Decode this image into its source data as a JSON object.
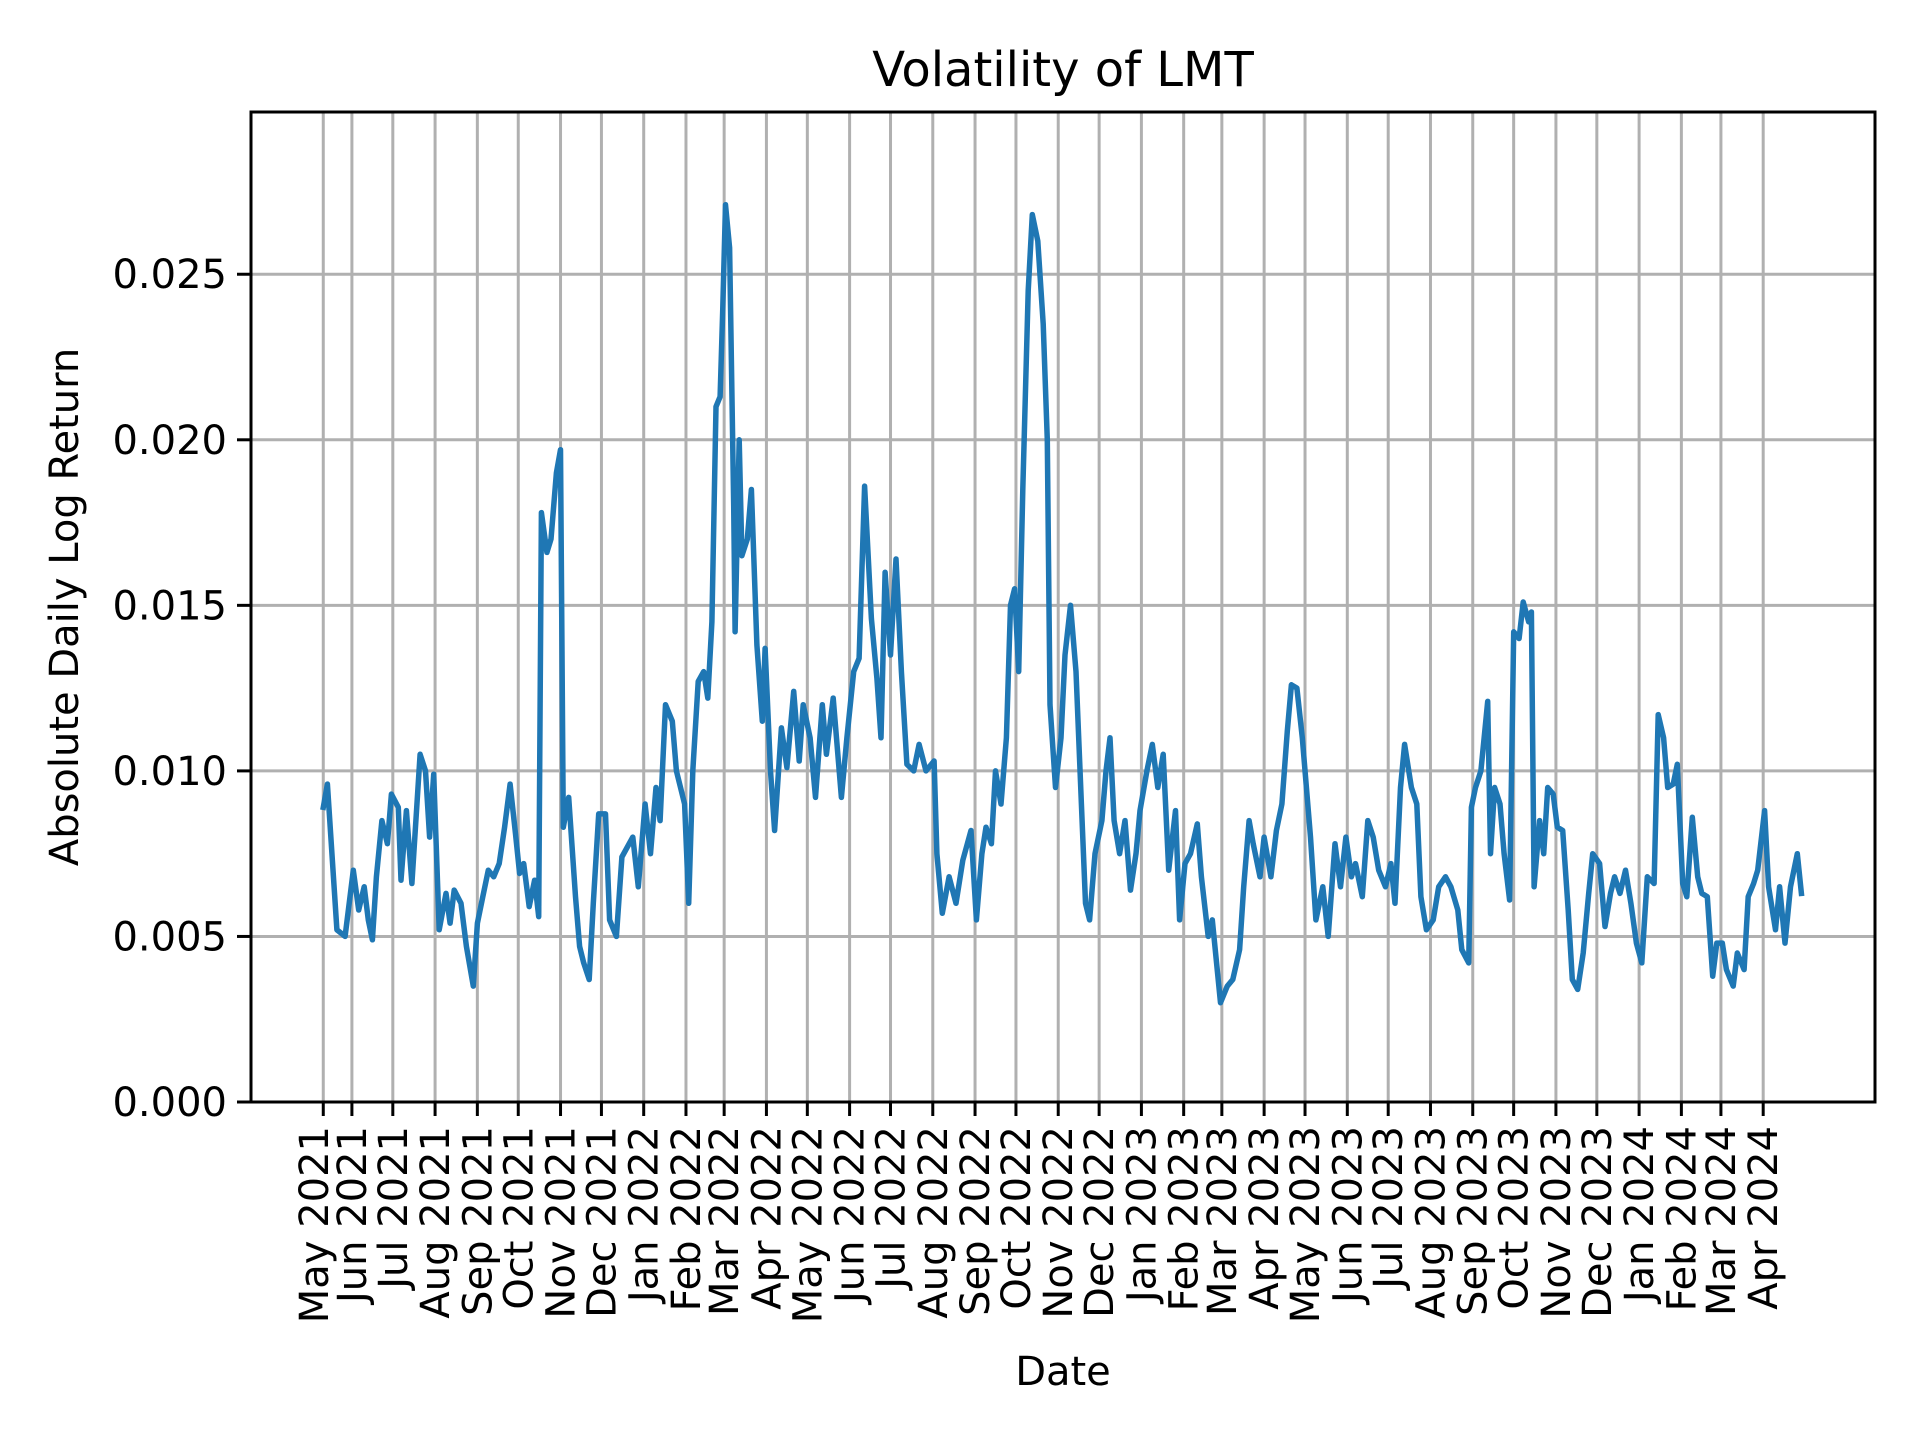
{
  "chart_data": {
    "type": "line",
    "title": "Volatility of LMT",
    "xlabel": "Date",
    "ylabel": "Absolute Daily Log Return",
    "xlim": [
      "2021-03-19",
      "2024-06-22"
    ],
    "ylim": [
      0,
      0.0299
    ],
    "grid": true,
    "color": "#1f77b4",
    "yticks": [
      {
        "value": 0.0,
        "label": "0.000"
      },
      {
        "value": 0.005,
        "label": "0.005"
      },
      {
        "value": 0.01,
        "label": "0.010"
      },
      {
        "value": 0.015,
        "label": "0.015"
      },
      {
        "value": 0.02,
        "label": "0.020"
      },
      {
        "value": 0.025,
        "label": "0.025"
      }
    ],
    "xticks": [
      {
        "date": "2021-05-11",
        "label": "May 2021"
      },
      {
        "date": "2021-06-01",
        "label": "Jun 2021"
      },
      {
        "date": "2021-07-01",
        "label": "Jul 2021"
      },
      {
        "date": "2021-08-01",
        "label": "Aug 2021"
      },
      {
        "date": "2021-09-01",
        "label": "Sep 2021"
      },
      {
        "date": "2021-10-01",
        "label": "Oct 2021"
      },
      {
        "date": "2021-11-01",
        "label": "Nov 2021"
      },
      {
        "date": "2021-12-01",
        "label": "Dec 2021"
      },
      {
        "date": "2022-01-01",
        "label": "Jan 2022"
      },
      {
        "date": "2022-02-01",
        "label": "Feb 2022"
      },
      {
        "date": "2022-03-01",
        "label": "Mar 2022"
      },
      {
        "date": "2022-04-01",
        "label": "Apr 2022"
      },
      {
        "date": "2022-05-01",
        "label": "May 2022"
      },
      {
        "date": "2022-06-01",
        "label": "Jun 2022"
      },
      {
        "date": "2022-07-01",
        "label": "Jul 2022"
      },
      {
        "date": "2022-08-01",
        "label": "Aug 2022"
      },
      {
        "date": "2022-09-01",
        "label": "Sep 2022"
      },
      {
        "date": "2022-10-01",
        "label": "Oct 2022"
      },
      {
        "date": "2022-11-01",
        "label": "Nov 2022"
      },
      {
        "date": "2022-12-01",
        "label": "Dec 2022"
      },
      {
        "date": "2023-01-01",
        "label": "Jan 2023"
      },
      {
        "date": "2023-02-01",
        "label": "Feb 2023"
      },
      {
        "date": "2023-03-01",
        "label": "Mar 2023"
      },
      {
        "date": "2023-04-01",
        "label": "Apr 2023"
      },
      {
        "date": "2023-05-01",
        "label": "May 2023"
      },
      {
        "date": "2023-06-01",
        "label": "Jun 2023"
      },
      {
        "date": "2023-07-01",
        "label": "Jul 2023"
      },
      {
        "date": "2023-08-01",
        "label": "Aug 2023"
      },
      {
        "date": "2023-09-01",
        "label": "Sep 2023"
      },
      {
        "date": "2023-10-01",
        "label": "Oct 2023"
      },
      {
        "date": "2023-11-01",
        "label": "Nov 2023"
      },
      {
        "date": "2023-12-01",
        "label": "Dec 2023"
      },
      {
        "date": "2024-01-01",
        "label": "Jan 2024"
      },
      {
        "date": "2024-02-01",
        "label": "Feb 2024"
      },
      {
        "date": "2024-03-01",
        "label": "Mar 2024"
      },
      {
        "date": "2024-04-01",
        "label": "Apr 2024"
      }
    ],
    "series": [
      {
        "x": [
          "2021-05-11",
          "2021-05-14",
          "2021-05-21",
          "2021-05-27",
          "2021-06-02",
          "2021-06-06",
          "2021-06-10",
          "2021-06-13",
          "2021-06-16",
          "2021-06-19",
          "2021-06-23",
          "2021-06-27",
          "2021-06-30",
          "2021-07-05",
          "2021-07-07",
          "2021-07-11",
          "2021-07-15",
          "2021-07-21",
          "2021-07-25",
          "2021-07-28",
          "2021-07-31",
          "2021-08-04",
          "2021-08-09",
          "2021-08-12",
          "2021-08-15",
          "2021-08-20",
          "2021-08-24",
          "2021-08-29",
          "2021-09-01",
          "2021-09-05",
          "2021-09-09",
          "2021-09-13",
          "2021-09-17",
          "2021-09-21",
          "2021-09-25",
          "2021-09-29",
          "2021-10-02",
          "2021-10-05",
          "2021-10-09",
          "2021-10-13",
          "2021-10-16",
          "2021-10-18",
          "2021-10-22",
          "2021-10-25",
          "2021-10-29",
          "2021-11-01",
          "2021-11-03",
          "2021-11-07",
          "2021-11-12",
          "2021-11-15",
          "2021-11-18",
          "2021-11-22",
          "2021-11-25",
          "2021-11-29",
          "2021-12-04",
          "2021-12-07",
          "2021-12-12",
          "2021-12-16",
          "2021-12-24",
          "2021-12-28",
          "2022-01-02",
          "2022-01-06",
          "2022-01-10",
          "2022-01-13",
          "2022-01-17",
          "2022-01-22",
          "2022-01-25",
          "2022-01-31",
          "2022-02-03",
          "2022-02-06",
          "2022-02-10",
          "2022-02-14",
          "2022-02-17",
          "2022-02-20",
          "2022-02-23",
          "2022-02-26",
          "2022-02-28",
          "2022-03-02",
          "2022-03-05",
          "2022-03-08",
          "2022-03-09",
          "2022-03-12",
          "2022-03-14",
          "2022-03-18",
          "2022-03-21",
          "2022-03-25",
          "2022-03-29",
          "2022-03-31",
          "2022-04-04",
          "2022-04-07",
          "2022-04-12",
          "2022-04-16",
          "2022-04-21",
          "2022-04-25",
          "2022-04-28",
          "2022-05-03",
          "2022-05-07",
          "2022-05-12",
          "2022-05-15",
          "2022-05-20",
          "2022-05-26",
          "2022-05-30",
          "2022-06-04",
          "2022-06-08",
          "2022-06-12",
          "2022-06-17",
          "2022-06-21",
          "2022-06-24",
          "2022-06-27",
          "2022-07-01",
          "2022-07-05",
          "2022-07-09",
          "2022-07-13",
          "2022-07-18",
          "2022-07-22",
          "2022-07-27",
          "2022-08-02",
          "2022-08-04",
          "2022-08-08",
          "2022-08-13",
          "2022-08-18",
          "2022-08-23",
          "2022-08-29",
          "2022-09-02",
          "2022-09-06",
          "2022-09-09",
          "2022-09-13",
          "2022-09-16",
          "2022-09-20",
          "2022-09-24",
          "2022-09-27",
          "2022-09-30",
          "2022-10-03",
          "2022-10-06",
          "2022-10-10",
          "2022-10-13",
          "2022-10-17",
          "2022-10-21",
          "2022-10-24",
          "2022-10-26",
          "2022-10-30",
          "2022-11-03",
          "2022-11-06",
          "2022-11-10",
          "2022-11-14",
          "2022-11-18",
          "2022-11-21",
          "2022-11-24",
          "2022-11-28",
          "2022-12-03",
          "2022-12-06",
          "2022-12-09",
          "2022-12-12",
          "2022-12-16",
          "2022-12-20",
          "2022-12-24",
          "2022-12-28",
          "2022-12-31",
          "2023-01-05",
          "2023-01-09",
          "2023-01-13",
          "2023-01-17",
          "2023-01-21",
          "2023-01-26",
          "2023-01-29",
          "2023-02-02",
          "2023-02-06",
          "2023-02-11",
          "2023-02-14",
          "2023-02-19",
          "2023-02-22",
          "2023-02-28",
          "2023-03-05",
          "2023-03-09",
          "2023-03-14",
          "2023-03-17",
          "2023-03-21",
          "2023-03-24",
          "2023-03-29",
          "2023-04-01",
          "2023-04-06",
          "2023-04-10",
          "2023-04-14",
          "2023-04-18",
          "2023-04-21",
          "2023-04-25",
          "2023-04-29",
          "2023-05-05",
          "2023-05-09",
          "2023-05-14",
          "2023-05-18",
          "2023-05-23",
          "2023-05-27",
          "2023-05-31",
          "2023-06-04",
          "2023-06-07",
          "2023-06-12",
          "2023-06-16",
          "2023-06-20",
          "2023-06-24",
          "2023-06-29",
          "2023-07-03",
          "2023-07-06",
          "2023-07-10",
          "2023-07-13",
          "2023-07-18",
          "2023-07-22",
          "2023-07-25",
          "2023-07-29",
          "2023-08-03",
          "2023-08-07",
          "2023-08-12",
          "2023-08-16",
          "2023-08-21",
          "2023-08-24",
          "2023-08-29",
          "2023-08-31",
          "2023-09-03",
          "2023-09-07",
          "2023-09-12",
          "2023-09-14",
          "2023-09-17",
          "2023-09-21",
          "2023-09-24",
          "2023-09-28",
          "2023-10-01",
          "2023-10-05",
          "2023-10-08",
          "2023-10-12",
          "2023-10-14",
          "2023-10-16",
          "2023-10-20",
          "2023-10-23",
          "2023-10-26",
          "2023-10-30",
          "2023-11-02",
          "2023-11-06",
          "2023-11-10",
          "2023-11-13",
          "2023-11-17",
          "2023-11-21",
          "2023-11-25",
          "2023-11-28",
          "2023-12-03",
          "2023-12-07",
          "2023-12-11",
          "2023-12-14",
          "2023-12-18",
          "2023-12-22",
          "2023-12-26",
          "2023-12-30",
          "2024-01-03",
          "2024-01-07",
          "2024-01-12",
          "2024-01-15",
          "2024-01-19",
          "2024-01-22",
          "2024-01-26",
          "2024-01-29",
          "2024-02-02",
          "2024-02-05",
          "2024-02-09",
          "2024-02-13",
          "2024-02-16",
          "2024-02-20",
          "2024-02-24",
          "2024-02-27",
          "2024-03-02",
          "2024-03-05",
          "2024-03-10",
          "2024-03-13",
          "2024-03-18",
          "2024-03-21",
          "2024-03-25",
          "2024-03-28",
          "2024-04-02",
          "2024-04-05",
          "2024-04-10",
          "2024-04-13",
          "2024-04-17",
          "2024-04-21",
          "2024-04-26",
          "2024-04-29"
        ],
        "y": [
          0.0089,
          0.0096,
          0.0052,
          0.005,
          0.007,
          0.0058,
          0.0065,
          0.0055,
          0.0049,
          0.0068,
          0.0085,
          0.0078,
          0.0093,
          0.0089,
          0.0067,
          0.0088,
          0.0066,
          0.0105,
          0.01,
          0.008,
          0.0099,
          0.0052,
          0.0063,
          0.0054,
          0.0064,
          0.006,
          0.0047,
          0.0035,
          0.0054,
          0.0062,
          0.007,
          0.0068,
          0.0072,
          0.0083,
          0.0096,
          0.0081,
          0.0069,
          0.0072,
          0.0059,
          0.0067,
          0.0056,
          0.0178,
          0.0166,
          0.017,
          0.019,
          0.0197,
          0.0083,
          0.0092,
          0.0062,
          0.0047,
          0.0042,
          0.0037,
          0.006,
          0.0087,
          0.0087,
          0.0055,
          0.005,
          0.0074,
          0.008,
          0.0065,
          0.009,
          0.0075,
          0.0095,
          0.0085,
          0.012,
          0.0115,
          0.01,
          0.009,
          0.006,
          0.01,
          0.0127,
          0.013,
          0.0122,
          0.0145,
          0.021,
          0.0213,
          0.024,
          0.0271,
          0.0258,
          0.018,
          0.0142,
          0.02,
          0.0165,
          0.017,
          0.0185,
          0.0138,
          0.0115,
          0.0137,
          0.01,
          0.0082,
          0.0113,
          0.0101,
          0.0124,
          0.0103,
          0.012,
          0.011,
          0.0092,
          0.012,
          0.0105,
          0.0122,
          0.0092,
          0.011,
          0.013,
          0.0134,
          0.0186,
          0.0146,
          0.0128,
          0.011,
          0.016,
          0.0135,
          0.0164,
          0.013,
          0.0102,
          0.01,
          0.0108,
          0.01,
          0.0103,
          0.0075,
          0.0057,
          0.0068,
          0.006,
          0.0073,
          0.0082,
          0.0055,
          0.0075,
          0.0083,
          0.0078,
          0.01,
          0.009,
          0.011,
          0.015,
          0.0155,
          0.013,
          0.0185,
          0.0245,
          0.0268,
          0.026,
          0.0235,
          0.02,
          0.012,
          0.0095,
          0.011,
          0.0135,
          0.015,
          0.013,
          0.009,
          0.006,
          0.0055,
          0.0075,
          0.0085,
          0.01,
          0.011,
          0.0085,
          0.0075,
          0.0085,
          0.0064,
          0.0075,
          0.0088,
          0.01,
          0.0108,
          0.0095,
          0.0105,
          0.007,
          0.0088,
          0.0055,
          0.0072,
          0.0075,
          0.0084,
          0.0068,
          0.005,
          0.0055,
          0.003,
          0.0035,
          0.0037,
          0.0046,
          0.0065,
          0.0085,
          0.0078,
          0.0068,
          0.008,
          0.0068,
          0.0082,
          0.009,
          0.0112,
          0.0126,
          0.0125,
          0.011,
          0.008,
          0.0055,
          0.0065,
          0.005,
          0.0078,
          0.0065,
          0.008,
          0.0068,
          0.0072,
          0.0062,
          0.0085,
          0.008,
          0.007,
          0.0065,
          0.0072,
          0.006,
          0.0095,
          0.0108,
          0.0095,
          0.009,
          0.0062,
          0.0052,
          0.0055,
          0.0065,
          0.0068,
          0.0065,
          0.0058,
          0.0046,
          0.0042,
          0.0089,
          0.0095,
          0.01,
          0.0121,
          0.0075,
          0.0095,
          0.009,
          0.0075,
          0.0061,
          0.0142,
          0.014,
          0.0151,
          0.0145,
          0.0148,
          0.0065,
          0.0085,
          0.0075,
          0.0095,
          0.0093,
          0.0083,
          0.0082,
          0.0058,
          0.0037,
          0.0034,
          0.0045,
          0.0063,
          0.0075,
          0.0072,
          0.0053,
          0.0063,
          0.0068,
          0.0063,
          0.007,
          0.006,
          0.0048,
          0.0042,
          0.0068,
          0.0066,
          0.0117,
          0.011,
          0.0095,
          0.0096,
          0.0102,
          0.0066,
          0.0062,
          0.0086,
          0.0068,
          0.0063,
          0.0062,
          0.0038,
          0.0048,
          0.0048,
          0.004,
          0.0035,
          0.0045,
          0.004,
          0.0062,
          0.0066,
          0.007,
          0.0088,
          0.0065,
          0.0052,
          0.0065,
          0.0048,
          0.0065,
          0.0075,
          0.0063
        ]
      }
    ]
  }
}
